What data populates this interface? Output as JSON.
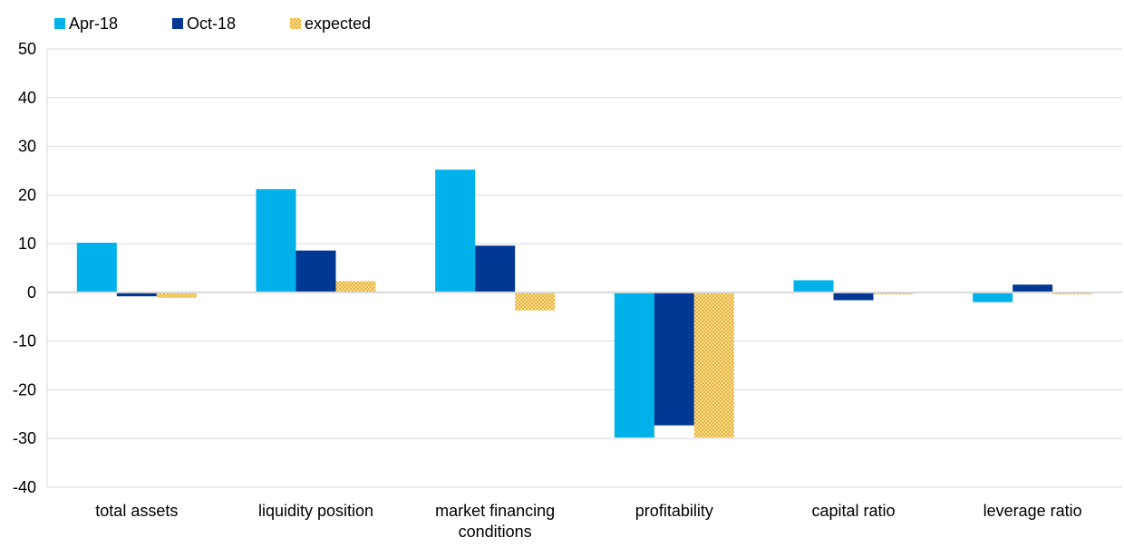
{
  "chart_data": {
    "type": "bar",
    "categories": [
      [
        "total assets"
      ],
      [
        "liquidity position"
      ],
      [
        "market financing",
        "conditions"
      ],
      [
        "profitability"
      ],
      [
        "capital ratio"
      ],
      [
        "leverage ratio"
      ]
    ],
    "series": [
      {
        "name": "Apr-18",
        "color": "#00b1ea",
        "pattern": "solid",
        "values": [
          10.2,
          21.2,
          25.2,
          -29.8,
          2.5,
          -2.0
        ]
      },
      {
        "name": "Oct-18",
        "color": "#003894",
        "pattern": "solid",
        "values": [
          -0.8,
          8.6,
          9.6,
          -27.3,
          -1.6,
          1.6
        ]
      },
      {
        "name": "expected",
        "color": "#f3c24e",
        "pattern": "checker",
        "values": [
          -1.1,
          2.3,
          -3.7,
          -29.8,
          -0.4,
          -0.4
        ]
      }
    ],
    "ylim": [
      -40,
      50
    ],
    "yticks": [
      -40,
      -30,
      -20,
      -10,
      0,
      10,
      20,
      30,
      40,
      50
    ],
    "grid": true,
    "legend_position": "top-left",
    "title": "",
    "xlabel": "",
    "ylabel": ""
  }
}
